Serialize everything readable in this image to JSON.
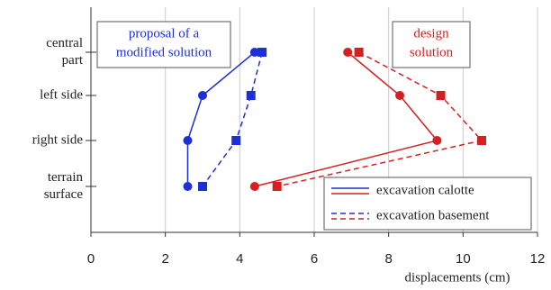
{
  "chart_data": {
    "type": "line",
    "x_label": "displacements (cm)",
    "categories": [
      [
        "central",
        "part"
      ],
      [
        "left side"
      ],
      [
        "right side"
      ],
      [
        "terrain",
        "surface"
      ]
    ],
    "xlim": [
      0,
      12
    ],
    "xticks": [
      0,
      2,
      4,
      6,
      8,
      10,
      12
    ],
    "grid": true,
    "kinds": [
      {
        "name": "excavation calotte",
        "dash": false,
        "marker": "circle"
      },
      {
        "name": "excavation basement",
        "dash": true,
        "marker": "square"
      }
    ],
    "groups": [
      {
        "name": [
          "proposal of a",
          "modified solution"
        ],
        "color": "#1f2fd6",
        "values": [
          [
            4.4,
            3.0,
            2.6,
            2.6
          ],
          [
            4.6,
            4.3,
            3.9,
            3.0
          ]
        ]
      },
      {
        "name": [
          "design",
          "solution"
        ],
        "color": "#d42020",
        "values": [
          [
            6.9,
            8.3,
            9.3,
            4.4
          ],
          [
            7.2,
            9.4,
            10.5,
            5.0
          ]
        ]
      }
    ],
    "legend": "lower right"
  }
}
